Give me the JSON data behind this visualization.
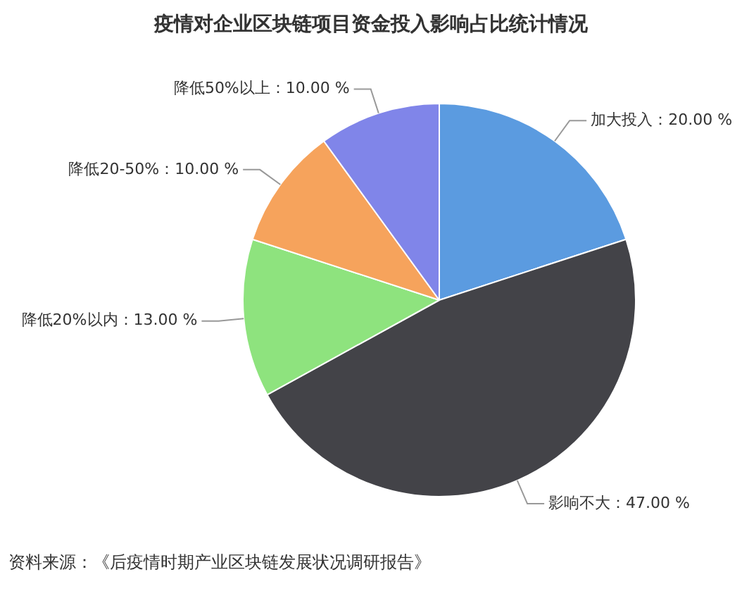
{
  "chart_data": {
    "type": "pie",
    "title": "疫情对企业区块链项目资金投入影响占比统计情况",
    "categories": [
      "加大投入",
      "影响不大",
      "降低20%以内",
      "降低20-50%",
      "降低50%以上"
    ],
    "values": [
      20,
      47,
      13,
      10,
      10
    ],
    "value_labels": [
      "20.00 %",
      "47.00 %",
      "13.00 %",
      "10.00 %",
      "10.00 %"
    ],
    "colors": [
      "#5b9be0",
      "#434348",
      "#8ee37e",
      "#f6a35c",
      "#8085e9"
    ],
    "legend": false,
    "annotations": [
      "资料来源：《后疫情时期产业区块链发展状况调研报告》"
    ]
  }
}
